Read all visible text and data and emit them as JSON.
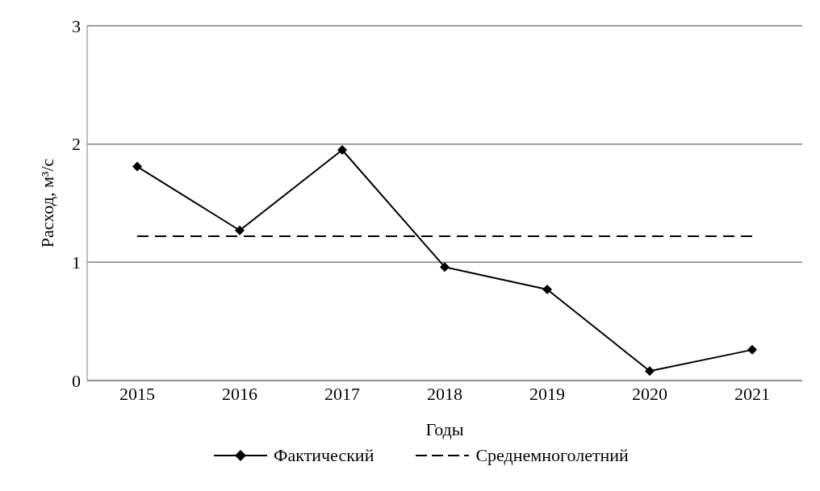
{
  "chart_data": {
    "type": "line",
    "xlabel": "Годы",
    "ylabel": "Расход, м³/с",
    "categories": [
      "2015",
      "2016",
      "2017",
      "2018",
      "2019",
      "2020",
      "2021"
    ],
    "series": [
      {
        "name": "Фактический",
        "color": "#000000",
        "marker": "diamond",
        "line_style": "solid",
        "values": [
          1.81,
          1.27,
          1.95,
          0.96,
          0.77,
          0.08,
          0.26
        ]
      },
      {
        "name": "Среднемноголетний",
        "color": "#000000",
        "marker": "none",
        "line_style": "dashed",
        "values": [
          1.22,
          1.22,
          1.22,
          1.22,
          1.22,
          1.22,
          1.22
        ]
      }
    ],
    "ylim": [
      0,
      3
    ],
    "yticks": [
      0,
      1,
      2,
      3
    ],
    "grid": "y",
    "legend": "bottom"
  }
}
